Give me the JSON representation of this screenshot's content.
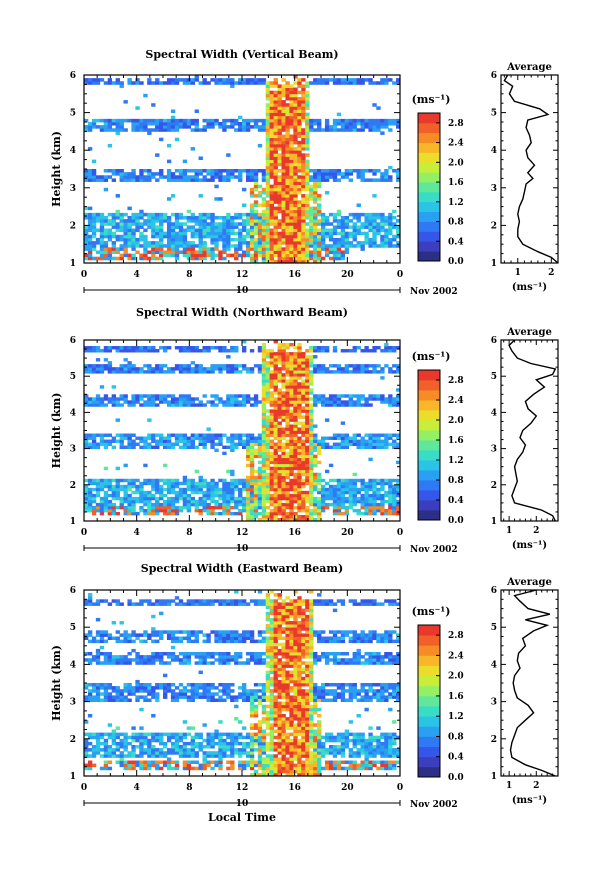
{
  "chart_data": [
    {
      "type": "heatmap",
      "title": "Spectral Width (Vertical Beam)",
      "ylabel": "Height (km)",
      "xlim": [
        0,
        24
      ],
      "ylim": [
        1,
        6
      ],
      "xticks": [
        "0",
        "4",
        "8",
        "12",
        "16",
        "20",
        "0"
      ],
      "yticks": [
        "1",
        "2",
        "3",
        "4",
        "5",
        "6"
      ],
      "date_label": "10",
      "month_year": "Nov 2002",
      "colorbar": {
        "label": "(ms⁻¹)",
        "ticks": [
          "0.0",
          "0.4",
          "0.8",
          "1.2",
          "1.6",
          "2.0",
          "2.4",
          "2.8"
        ],
        "range": [
          0,
          3.0
        ]
      },
      "layers": [
        {
          "h0": 1.4,
          "h1": 2.3,
          "width": 1.0
        },
        {
          "h0": 3.2,
          "h1": 3.5,
          "width": 0.8
        },
        {
          "h0": 4.5,
          "h1": 4.8,
          "width": 0.8
        },
        {
          "h0": 5.75,
          "h1": 5.95,
          "width": 0.7
        }
      ],
      "bottom_layer": {
        "h0": 1.1,
        "h1": 1.4,
        "width": 3.0,
        "t_start": 0,
        "t_end": 20
      },
      "storm": {
        "t_start": 13.8,
        "t_end": 17.2,
        "h_top": 6.0,
        "width": 3.0
      },
      "profile": {
        "title": "Average",
        "xlabel": "(ms⁻¹)",
        "xlim": [
          0.5,
          2.2
        ],
        "xticks": [
          "1",
          "2"
        ],
        "height": [
          1.0,
          1.15,
          1.3,
          1.5,
          1.7,
          1.9,
          2.1,
          2.3,
          2.5,
          2.7,
          2.9,
          3.1,
          3.25,
          3.4,
          3.6,
          3.8,
          4.0,
          4.2,
          4.4,
          4.6,
          4.8,
          4.95,
          5.1,
          5.3,
          5.5,
          5.7,
          5.85,
          6.0
        ],
        "width": [
          2.2,
          2.0,
          1.6,
          1.15,
          1.0,
          1.0,
          1.05,
          1.0,
          1.05,
          1.15,
          1.2,
          1.25,
          1.45,
          1.3,
          1.5,
          1.3,
          1.25,
          1.4,
          1.35,
          1.25,
          1.3,
          1.9,
          1.65,
          0.9,
          0.75,
          0.85,
          0.6,
          0.7
        ]
      }
    },
    {
      "type": "heatmap",
      "title": "Spectral Width (Northward Beam)",
      "ylabel": "Height (km)",
      "xlim": [
        0,
        24
      ],
      "ylim": [
        1,
        6
      ],
      "xticks": [
        "0",
        "4",
        "8",
        "12",
        "16",
        "20",
        "0"
      ],
      "yticks": [
        "1",
        "2",
        "3",
        "4",
        "5",
        "6"
      ],
      "date_label": "10",
      "month_year": "Nov 2002",
      "colorbar": {
        "label": "(ms⁻¹)",
        "ticks": [
          "0.0",
          "0.4",
          "0.8",
          "1.2",
          "1.6",
          "2.0",
          "2.4",
          "2.8"
        ],
        "range": [
          0,
          3.0
        ]
      },
      "layers": [
        {
          "h0": 1.4,
          "h1": 2.2,
          "width": 1.0
        },
        {
          "h0": 3.0,
          "h1": 3.4,
          "width": 0.9
        },
        {
          "h0": 4.2,
          "h1": 4.5,
          "width": 0.8
        },
        {
          "h0": 5.1,
          "h1": 5.3,
          "width": 0.8
        },
        {
          "h0": 5.7,
          "h1": 5.85,
          "width": 0.7
        }
      ],
      "bottom_layer": {
        "h0": 1.15,
        "h1": 1.4,
        "width": 3.0,
        "t_start": 0,
        "t_end": 24
      },
      "storm": {
        "t_start": 13.6,
        "t_end": 17.3,
        "h_top": 6.0,
        "width": 3.0
      },
      "profile": {
        "title": "Average",
        "xlabel": "(ms⁻¹)",
        "xlim": [
          0.7,
          2.8
        ],
        "xticks": [
          "1",
          "2"
        ],
        "height": [
          1.0,
          1.15,
          1.3,
          1.5,
          1.7,
          1.9,
          2.1,
          2.3,
          2.5,
          2.7,
          2.9,
          3.1,
          3.3,
          3.5,
          3.7,
          3.9,
          4.1,
          4.3,
          4.5,
          4.7,
          4.9,
          5.05,
          5.2,
          5.35,
          5.5,
          5.7,
          5.85,
          6.0
        ],
        "width": [
          2.7,
          2.6,
          2.2,
          1.2,
          1.1,
          1.2,
          1.3,
          1.25,
          1.2,
          1.3,
          1.5,
          1.6,
          1.4,
          1.5,
          1.8,
          2.0,
          1.7,
          1.6,
          1.9,
          2.3,
          2.0,
          2.6,
          2.7,
          1.8,
          1.3,
          1.1,
          1.0,
          1.2
        ]
      }
    },
    {
      "type": "heatmap",
      "title": "Spectral Width (Eastward Beam)",
      "ylabel": "Height (km)",
      "xlabel": "Local Time",
      "xlim": [
        0,
        24
      ],
      "ylim": [
        1,
        6
      ],
      "xticks": [
        "0",
        "4",
        "8",
        "12",
        "16",
        "20",
        "0"
      ],
      "yticks": [
        "1",
        "2",
        "3",
        "4",
        "5",
        "6"
      ],
      "date_label": "10",
      "month_year": "Nov 2002",
      "colorbar": {
        "label": "(ms⁻¹)",
        "ticks": [
          "0.0",
          "0.4",
          "0.8",
          "1.2",
          "1.6",
          "2.0",
          "2.4",
          "2.8"
        ],
        "range": [
          0,
          3.0
        ]
      },
      "layers": [
        {
          "h0": 1.5,
          "h1": 2.2,
          "width": 1.0
        },
        {
          "h0": 3.0,
          "h1": 3.5,
          "width": 0.8
        },
        {
          "h0": 4.0,
          "h1": 4.3,
          "width": 0.8
        },
        {
          "h0": 4.6,
          "h1": 4.9,
          "width": 0.8
        },
        {
          "h0": 5.6,
          "h1": 5.75,
          "width": 0.7
        }
      ],
      "bottom_layer": {
        "h0": 1.15,
        "h1": 1.45,
        "width": 3.0,
        "t_start": 0,
        "t_end": 24
      },
      "storm": {
        "t_start": 13.9,
        "t_end": 17.3,
        "h_top": 6.0,
        "width": 3.0
      },
      "profile": {
        "title": "Average",
        "xlabel": "(ms⁻¹)",
        "xlim": [
          0.7,
          2.8
        ],
        "xticks": [
          "1",
          "2"
        ],
        "height": [
          1.0,
          1.15,
          1.3,
          1.5,
          1.7,
          1.9,
          2.1,
          2.3,
          2.5,
          2.7,
          2.9,
          3.1,
          3.3,
          3.5,
          3.7,
          3.9,
          4.1,
          4.3,
          4.5,
          4.7,
          4.9,
          5.05,
          5.2,
          5.35,
          5.5,
          5.7,
          5.85,
          6.0
        ],
        "width": [
          2.7,
          2.2,
          1.6,
          1.1,
          1.05,
          1.1,
          1.2,
          1.3,
          1.6,
          1.9,
          1.7,
          1.3,
          1.2,
          1.15,
          1.2,
          1.4,
          1.3,
          1.35,
          1.6,
          1.5,
          1.9,
          2.4,
          1.6,
          2.5,
          1.7,
          1.4,
          1.2,
          2.0
        ]
      }
    }
  ]
}
